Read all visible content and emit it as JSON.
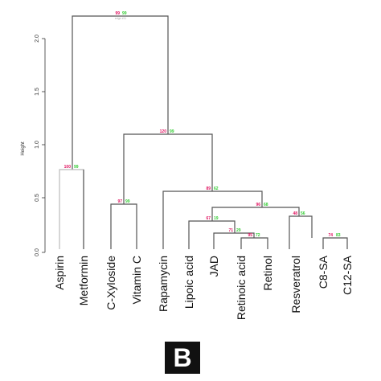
{
  "axis": {
    "title": "Height",
    "ticks": [
      "0.0",
      "0.5",
      "1.0",
      "1.5",
      "2.0"
    ]
  },
  "leaves": [
    "Aspirin",
    "Metformin",
    "C-Xyloside",
    "Vitamin C",
    "Rapamycin",
    "Lipoic acid",
    "JAD",
    "Retinoic acid",
    "Retinol",
    "Resveratrol",
    "C8-SA",
    "C12-SA"
  ],
  "nodes": [
    {
      "au": "99",
      "bp": "99",
      "edge": "edge #11"
    },
    {
      "au": "100",
      "bp": "99"
    },
    {
      "au": "120",
      "bp": "99"
    },
    {
      "au": "97",
      "bp": "99"
    },
    {
      "au": "89",
      "bp": "62"
    },
    {
      "au": "96",
      "bp": "68"
    },
    {
      "au": "67",
      "bp": "19"
    },
    {
      "au": "71",
      "bp": "29"
    },
    {
      "au": "95",
      "bp": "72"
    },
    {
      "au": "48",
      "bp": "56"
    },
    {
      "au": "74",
      "bp": "83"
    }
  ],
  "colors": {
    "line": "#555555",
    "au": "#e0115f",
    "bp": "#33cc33",
    "leaf_line": "#bbbbbb"
  },
  "panel": {
    "label": "B"
  }
}
